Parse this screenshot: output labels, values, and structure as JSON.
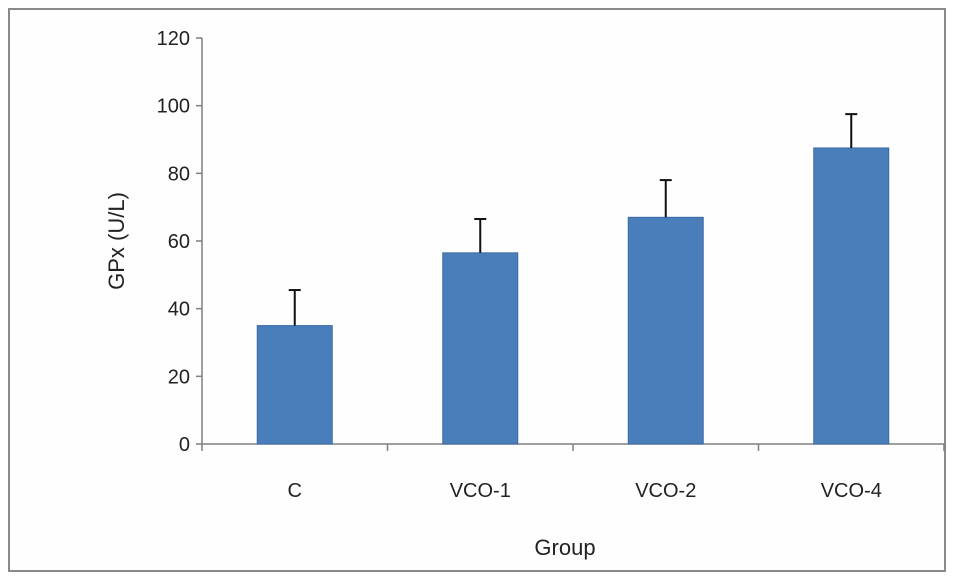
{
  "chart_data": {
    "type": "bar",
    "categories": [
      "C",
      "VCO-1",
      "VCO-2",
      "VCO-4"
    ],
    "values": [
      35,
      56.5,
      67,
      87.5
    ],
    "error_plus": [
      10.5,
      10,
      11,
      10
    ],
    "xlabel": "Group",
    "ylabel": "GPx (U/L)",
    "ylim": [
      0,
      120
    ],
    "yticks": [
      0,
      20,
      40,
      60,
      80,
      100,
      120
    ],
    "colors": {
      "bar": "#4a7ebb",
      "bar_edge": "#3b6aa6",
      "error": "#111111",
      "axis": "#7f7f7f"
    },
    "grid": false,
    "legend": "none"
  }
}
